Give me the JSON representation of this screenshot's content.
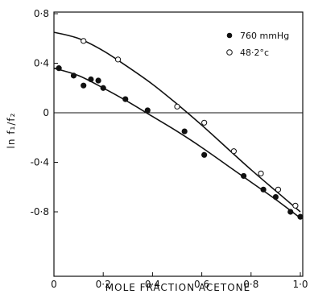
{
  "chart_data": {
    "type": "scatter",
    "xlabel": "MOLE FRACTION ACETONE",
    "ylabel": "ln f₁/f₂",
    "xlim": [
      0,
      1.0
    ],
    "ylim": [
      -1.1,
      0.8
    ],
    "x_ticks": [
      0,
      0.2,
      0.4,
      0.6,
      0.8,
      1.0
    ],
    "x_tick_labels": [
      "0",
      "0·2",
      "0·4",
      "0·6",
      "0·8",
      "1·0"
    ],
    "y_ticks": [
      0.8,
      0.4,
      0,
      -0.4,
      -0.8
    ],
    "y_tick_labels": [
      "0·8",
      "0·4",
      "0",
      "-0·4",
      "-0·8"
    ],
    "zero_line": true,
    "grid": false,
    "legend_position": "top-right",
    "series": [
      {
        "name": "760 mmHg",
        "marker": "filled-circle",
        "points": [
          [
            0.02,
            0.36
          ],
          [
            0.08,
            0.3
          ],
          [
            0.12,
            0.22
          ],
          [
            0.15,
            0.27
          ],
          [
            0.18,
            0.26
          ],
          [
            0.2,
            0.2
          ],
          [
            0.29,
            0.11
          ],
          [
            0.38,
            0.02
          ],
          [
            0.53,
            -0.15
          ],
          [
            0.61,
            -0.34
          ],
          [
            0.77,
            -0.51
          ],
          [
            0.85,
            -0.62
          ],
          [
            0.9,
            -0.68
          ],
          [
            0.96,
            -0.8
          ],
          [
            1.0,
            -0.84
          ]
        ],
        "fit_curve": [
          [
            0.0,
            0.36
          ],
          [
            0.1,
            0.3
          ],
          [
            0.2,
            0.2
          ],
          [
            0.3,
            0.09
          ],
          [
            0.4,
            -0.03
          ],
          [
            0.5,
            -0.15
          ],
          [
            0.6,
            -0.28
          ],
          [
            0.7,
            -0.42
          ],
          [
            0.8,
            -0.56
          ],
          [
            0.9,
            -0.7
          ],
          [
            1.0,
            -0.85
          ]
        ]
      },
      {
        "name": "48·2°c",
        "marker": "open-circle",
        "points": [
          [
            0.12,
            0.58
          ],
          [
            0.26,
            0.43
          ],
          [
            0.5,
            0.05
          ],
          [
            0.61,
            -0.08
          ],
          [
            0.73,
            -0.31
          ],
          [
            0.84,
            -0.49
          ],
          [
            0.91,
            -0.62
          ],
          [
            0.98,
            -0.75
          ]
        ],
        "fit_curve": [
          [
            0.0,
            0.65
          ],
          [
            0.1,
            0.6
          ],
          [
            0.2,
            0.5
          ],
          [
            0.3,
            0.37
          ],
          [
            0.4,
            0.23
          ],
          [
            0.5,
            0.07
          ],
          [
            0.6,
            -0.1
          ],
          [
            0.7,
            -0.28
          ],
          [
            0.8,
            -0.46
          ],
          [
            0.9,
            -0.63
          ],
          [
            1.0,
            -0.8
          ]
        ]
      }
    ]
  }
}
